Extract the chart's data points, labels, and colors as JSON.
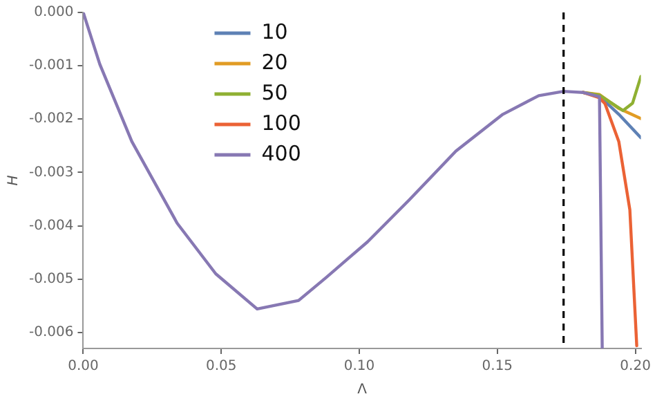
{
  "chart_data": {
    "type": "line",
    "xlabel": "Λ",
    "ylabel": "H",
    "xlim": [
      0,
      0.202
    ],
    "ylim": [
      -0.0063,
      0
    ],
    "xticks": [
      {
        "value": 0,
        "label": "0.00"
      },
      {
        "value": 0.05,
        "label": "0.05"
      },
      {
        "value": 0.1,
        "label": "0.10"
      },
      {
        "value": 0.15,
        "label": "0.15"
      },
      {
        "value": 0.2,
        "label": "0.20"
      }
    ],
    "yticks": [
      {
        "value": 0,
        "label": "0.000"
      },
      {
        "value": -0.001,
        "label": "-0.001"
      },
      {
        "value": -0.002,
        "label": "-0.002"
      },
      {
        "value": -0.003,
        "label": "-0.003"
      },
      {
        "value": -0.004,
        "label": "-0.004"
      },
      {
        "value": -0.005,
        "label": "-0.005"
      },
      {
        "value": -0.006,
        "label": "-0.006"
      }
    ],
    "grid": false,
    "legend": "top left",
    "marker": "none",
    "line_style": "solid",
    "ref_lines": [
      {
        "axis": "x",
        "value": 0.174,
        "color": "#000000",
        "line_style": "dashed"
      }
    ],
    "series": [
      {
        "name": "10",
        "color": "#5e81b5",
        "x": [
          0.181,
          0.187,
          0.194,
          0.202
        ],
        "values": [
          -0.0015,
          -0.00157,
          -0.00191,
          -0.00235
        ]
      },
      {
        "name": "20",
        "color": "#e19c24",
        "x": [
          0.181,
          0.187,
          0.194,
          0.202
        ],
        "values": [
          -0.0015,
          -0.00154,
          -0.0018,
          -0.00199
        ]
      },
      {
        "name": "50",
        "color": "#8fb032",
        "x": [
          0.181,
          0.187,
          0.1955,
          0.199,
          0.202
        ],
        "values": [
          -0.0015,
          -0.00155,
          -0.00184,
          -0.0017,
          -0.0012
        ]
      },
      {
        "name": "100",
        "color": "#eb6235",
        "x": [
          0.181,
          0.187,
          0.189,
          0.194,
          0.198,
          0.2005
        ],
        "values": [
          -0.0015,
          -0.0016,
          -0.00171,
          -0.00242,
          -0.0037,
          -0.00625
        ]
      },
      {
        "name": "400",
        "color": "#8778b3",
        "x": [
          0,
          0.006,
          0.0176,
          0.034,
          0.048,
          0.063,
          0.078,
          0.088,
          0.103,
          0.118,
          0.135,
          0.152,
          0.165,
          0.174,
          0.181,
          0.187,
          0.188
        ],
        "values": [
          0,
          -0.00097,
          -0.00242,
          -0.00395,
          -0.0049,
          -0.00556,
          -0.0054,
          -0.00497,
          -0.0043,
          -0.00352,
          -0.0026,
          -0.00191,
          -0.00156,
          -0.00148,
          -0.0015,
          -0.00158,
          -0.0063
        ]
      }
    ]
  }
}
